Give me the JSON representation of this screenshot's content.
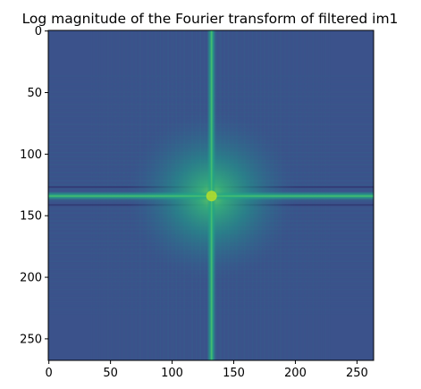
{
  "chart_data": {
    "type": "heatmap",
    "title": "Log magnitude of the Fourier transform of filtered im1",
    "xlabel": "",
    "ylabel": "",
    "colormap": "viridis",
    "image_shape": [
      268,
      264
    ],
    "xlim": [
      -0.5,
      263.5
    ],
    "ylim": [
      267.5,
      -0.5
    ],
    "y_axis_inverted": true,
    "x_ticks": [
      0,
      50,
      100,
      150,
      200,
      250
    ],
    "x_tick_labels": [
      "0",
      "50",
      "100",
      "150",
      "200",
      "250"
    ],
    "y_ticks": [
      0,
      50,
      100,
      150,
      200,
      250
    ],
    "y_tick_labels": [
      "0",
      "50",
      "100",
      "150",
      "200",
      "250"
    ],
    "spectrum_center": [
      132,
      134
    ],
    "grid": false,
    "legend": "none"
  }
}
